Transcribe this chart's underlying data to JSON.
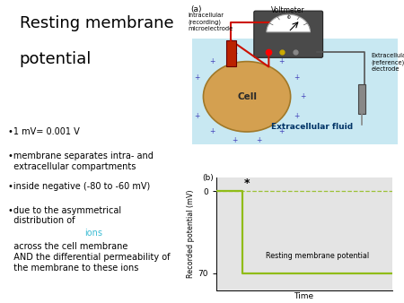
{
  "title_line1": "Resting membrane",
  "title_line2": "potential",
  "title_fontsize": 13,
  "ions_word_color": "#3bbcd4",
  "bullet_fontsize": 7.0,
  "label_a": "(a)",
  "label_b": "(b)",
  "bg_color": "#ffffff",
  "fluid_color": "#c8e8f2",
  "cell_fill": "#d4a050",
  "cell_edge": "#a07828",
  "plus_color": "#4444bb",
  "graph_line_color": "#90bc18",
  "graph_dashed_color": "#90bc18",
  "graph_bg": "#e4e4e4",
  "recorded_label": "Recorded potential (mV)",
  "time_label": "Time",
  "resting_label": "Resting membrane potential",
  "y_tick_0": "0",
  "y_tick_neg70": "70",
  "star_symbol": "*",
  "voltmeter_body": "#4a4a4a",
  "wire_red": "#cc1100",
  "wire_gray": "#555555",
  "elec_intracell": "#bb2200",
  "elec_extracell": "#888888",
  "extracell_fluid_label_color": "#003366",
  "intracell_label": "Intracellular\n(recording)\nmicroelectrode",
  "extracell_label": "Extracellular\n(reference)\nelectrode",
  "voltmeter_label": "Voltmeter",
  "extracell_fluid_label": "Extracellular fluid",
  "cell_label": "Cell"
}
